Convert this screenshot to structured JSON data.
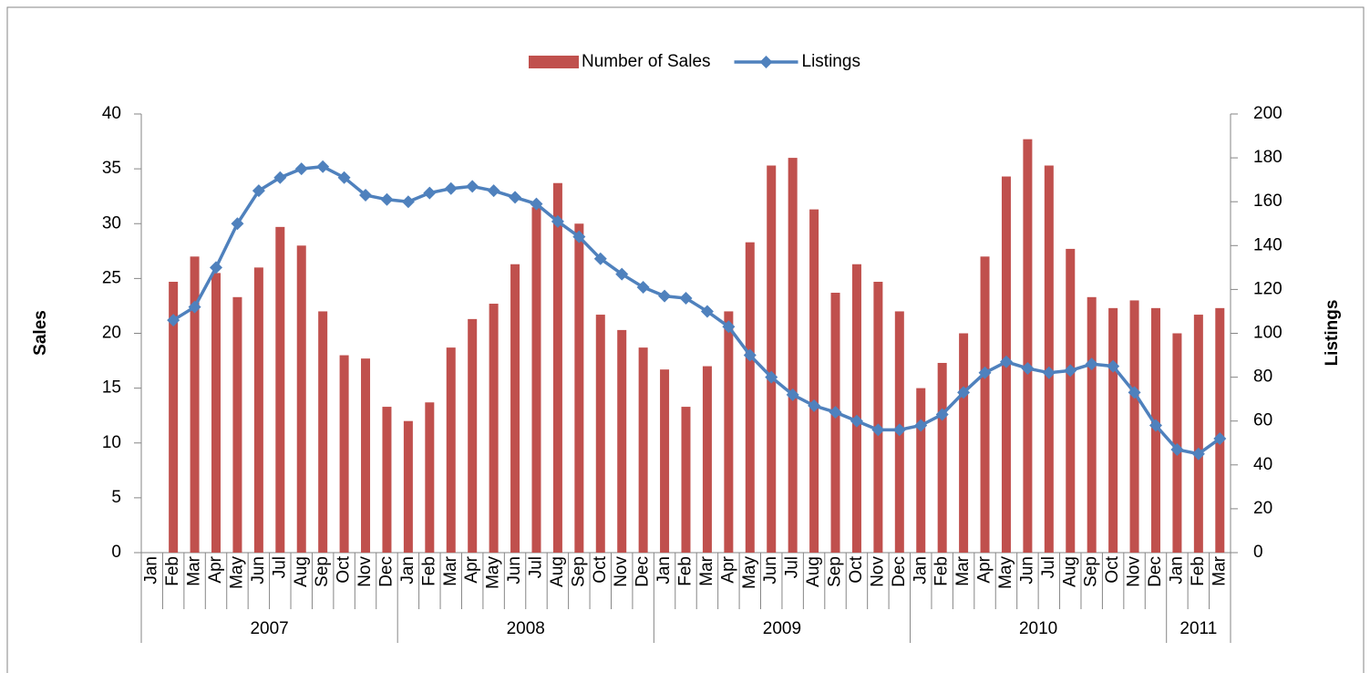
{
  "chart_data": {
    "type": "combo",
    "ylabel": "Sales",
    "y2label": "Listings",
    "ylim": [
      0,
      40
    ],
    "yticks": [
      0,
      5,
      10,
      15,
      20,
      25,
      30,
      35,
      40
    ],
    "y2lim": [
      0,
      200
    ],
    "y2ticks": [
      0,
      20,
      40,
      60,
      80,
      100,
      120,
      140,
      160,
      180,
      200
    ],
    "legend": "top",
    "category_groups": [
      {
        "name": "2007",
        "categories": [
          "Jan",
          "Feb",
          "Mar",
          "Apr",
          "May",
          "Jun",
          "Jul",
          "Aug",
          "Sep",
          "Oct",
          "Nov",
          "Dec"
        ]
      },
      {
        "name": "2008",
        "categories": [
          "Jan",
          "Feb",
          "Mar",
          "Apr",
          "May",
          "Jun",
          "Jul",
          "Aug",
          "Sep",
          "Oct",
          "Nov",
          "Dec"
        ]
      },
      {
        "name": "2009",
        "categories": [
          "Jan",
          "Feb",
          "Mar",
          "Apr",
          "May",
          "Jun",
          "Jul",
          "Aug",
          "Sep",
          "Oct",
          "Nov",
          "Dec"
        ]
      },
      {
        "name": "2010",
        "categories": [
          "Jan",
          "Feb",
          "Mar",
          "Apr",
          "May",
          "Jun",
          "Jul",
          "Aug",
          "Sep",
          "Oct",
          "Nov",
          "Dec"
        ]
      },
      {
        "name": "2011",
        "categories": [
          "Jan",
          "Feb",
          "Mar"
        ]
      }
    ],
    "series": [
      {
        "name": "Number of Sales",
        "type": "bar",
        "color": "#c0504d",
        "values": [
          null,
          24.7,
          27,
          25.5,
          23.3,
          26,
          29.7,
          28,
          22,
          18,
          17.7,
          13.3,
          12,
          13.7,
          18.7,
          21.3,
          22.7,
          26.3,
          31.5,
          33.7,
          30,
          21.7,
          20.3,
          18.7,
          16.7,
          13.3,
          17,
          22,
          28.3,
          35.3,
          36,
          31.3,
          23.7,
          26.3,
          24.7,
          22,
          15,
          17.3,
          20,
          27,
          34.3,
          37.7,
          35.3,
          27.7,
          23.3,
          22.3,
          23,
          22.3,
          20,
          21.7,
          22.3
        ]
      },
      {
        "name": "Listings",
        "type": "line",
        "axis": "y2",
        "color": "#4f81bd",
        "values": [
          null,
          106,
          112,
          130,
          150,
          165,
          171,
          175,
          176,
          171,
          163,
          161,
          160,
          164,
          166,
          167,
          165,
          162,
          159,
          151,
          144,
          134,
          127,
          121,
          117,
          116,
          110,
          103,
          90,
          80,
          72,
          67,
          64,
          60,
          56,
          56,
          58,
          63,
          73,
          82,
          87,
          84,
          82,
          83,
          86,
          85,
          73,
          58,
          47,
          45,
          52
        ]
      }
    ]
  }
}
